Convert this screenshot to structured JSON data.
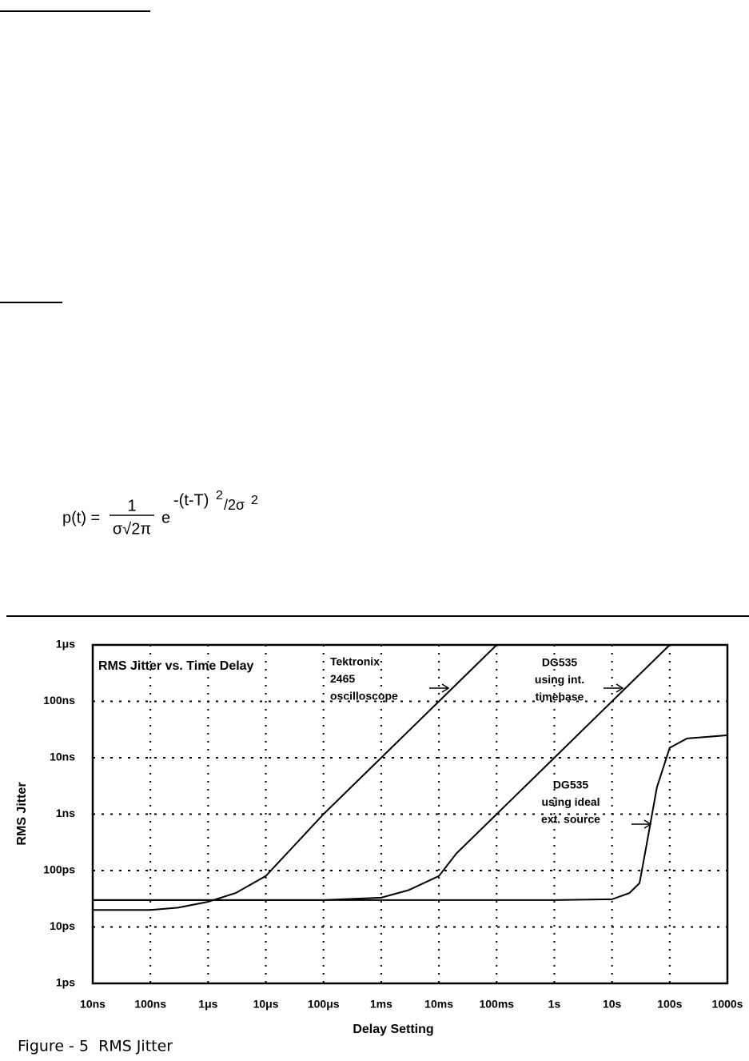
{
  "formula": {
    "lhs": "p(t) =",
    "numerator": "1",
    "denominator": "σ√2π",
    "base": "e",
    "exponent": "-(t-T)",
    "exponent_power": "2",
    "exponent_divisor": "/2σ",
    "exponent_divisor_power": "2"
  },
  "chart_data": {
    "type": "line",
    "title": "RMS Jitter  vs. Time Delay",
    "x_label": "Delay Setting",
    "y_label": "RMS Jitter",
    "xscale": "log",
    "yscale": "log",
    "grid": true,
    "color": "#000000",
    "xlim": [
      1e-08,
      1000
    ],
    "ylim": [
      1e-12,
      1e-06
    ],
    "xticks": [
      {
        "value": 1e-08,
        "label": "10ns"
      },
      {
        "value": 1e-07,
        "label": "100ns"
      },
      {
        "value": 1e-06,
        "label": "1μs"
      },
      {
        "value": 1e-05,
        "label": "10μs"
      },
      {
        "value": 0.0001,
        "label": "100μs"
      },
      {
        "value": 0.001,
        "label": "1ms"
      },
      {
        "value": 0.01,
        "label": "10ms"
      },
      {
        "value": 0.1,
        "label": "100ms"
      },
      {
        "value": 1,
        "label": "1s"
      },
      {
        "value": 10,
        "label": "10s"
      },
      {
        "value": 100,
        "label": "100s"
      },
      {
        "value": 1000,
        "label": "1000s"
      }
    ],
    "yticks": [
      {
        "value": 1e-12,
        "label": "1ps"
      },
      {
        "value": 1e-11,
        "label": "10ps"
      },
      {
        "value": 1e-10,
        "label": "100ps"
      },
      {
        "value": 1e-09,
        "label": "1ns"
      },
      {
        "value": 1e-08,
        "label": "10ns"
      },
      {
        "value": 1e-07,
        "label": "100ns"
      },
      {
        "value": 1e-06,
        "label": "1μs"
      }
    ],
    "series": [
      {
        "label_lines": [
          "Tektronix",
          "2465",
          "oscilloscope"
        ],
        "color": "#000000",
        "x": [
          1e-08,
          1e-07,
          3e-07,
          1e-06,
          3e-06,
          1e-05,
          0.0001,
          0.001,
          0.01,
          0.1
        ],
        "values": [
          2e-11,
          2e-11,
          2.2e-11,
          2.8e-11,
          4e-11,
          8e-11,
          1e-09,
          1e-08,
          1e-07,
          1e-06
        ]
      },
      {
        "label_lines": [
          "DG535",
          "using int.",
          "timebase"
        ],
        "color": "#000000",
        "x": [
          1e-08,
          0.0001,
          0.001,
          0.003,
          0.01,
          0.02,
          0.1,
          1,
          10,
          100
        ],
        "values": [
          3e-11,
          3e-11,
          3.3e-11,
          4.5e-11,
          8e-11,
          2e-10,
          1e-09,
          1e-08,
          1e-07,
          1e-06
        ]
      },
      {
        "label_lines": [
          "DG535",
          "using ideal",
          "ext. source"
        ],
        "color": "#000000",
        "x": [
          1e-08,
          1,
          10,
          20,
          30,
          40,
          60,
          100,
          200,
          1000
        ],
        "values": [
          3e-11,
          3e-11,
          3.1e-11,
          4e-11,
          6e-11,
          3e-10,
          3e-09,
          1.5e-08,
          2.2e-08,
          2.5e-08
        ]
      }
    ]
  },
  "caption": "Figure - 5  RMS Jitter"
}
